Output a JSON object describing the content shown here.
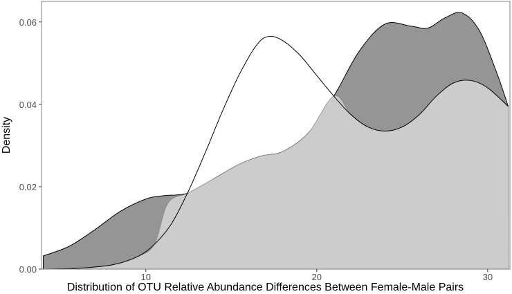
{
  "chart_data": {
    "type": "area",
    "title": "",
    "xlabel": "Distribution of OTU Relative Abundance Differences Between Female-Male Pairs",
    "ylabel": "Density",
    "xlim": [
      3.9,
      31.3
    ],
    "ylim": [
      0,
      0.065
    ],
    "x_ticks": [
      10,
      20,
      30
    ],
    "y_ticks": [
      0.0,
      0.02,
      0.04,
      0.06
    ],
    "y_tick_labels": [
      "0.00",
      "0.02",
      "0.04",
      "0.06"
    ],
    "grid": false,
    "legend": "none",
    "colors": {
      "dark_fill": "#959595",
      "light_fill": "#cccccc",
      "line": "#000000",
      "light_line": "#8c8c8c",
      "axis_text": "#4d4d4d"
    },
    "series": [
      {
        "fill": "#959595",
        "points": [
          [
            4.0,
            0.0032
          ],
          [
            5.5,
            0.0055
          ],
          [
            7.0,
            0.0095
          ],
          [
            8.5,
            0.014
          ],
          [
            10.0,
            0.017
          ],
          [
            11.0,
            0.0178
          ],
          [
            12.5,
            0.0185
          ],
          [
            14.0,
            0.022
          ],
          [
            15.5,
            0.0255
          ],
          [
            16.8,
            0.0275
          ],
          [
            18.0,
            0.0285
          ],
          [
            19.5,
            0.033
          ],
          [
            21.0,
            0.042
          ],
          [
            22.5,
            0.053
          ],
          [
            24.0,
            0.0595
          ],
          [
            25.5,
            0.059
          ],
          [
            26.5,
            0.0585
          ],
          [
            27.5,
            0.061
          ],
          [
            28.5,
            0.0622
          ],
          [
            29.5,
            0.058
          ],
          [
            30.5,
            0.048
          ],
          [
            31.2,
            0.0395
          ]
        ]
      },
      {
        "fill": "none",
        "points": [
          [
            4.0,
            0.0
          ],
          [
            6.0,
            0.0002
          ],
          [
            8.0,
            0.001
          ],
          [
            9.5,
            0.003
          ],
          [
            10.5,
            0.006
          ],
          [
            11.5,
            0.011
          ],
          [
            12.5,
            0.019
          ],
          [
            13.5,
            0.0285
          ],
          [
            14.5,
            0.0385
          ],
          [
            15.5,
            0.0475
          ],
          [
            16.5,
            0.0545
          ],
          [
            17.2,
            0.0565
          ],
          [
            18.0,
            0.0555
          ],
          [
            19.0,
            0.052
          ],
          [
            20.0,
            0.047
          ],
          [
            21.0,
            0.042
          ],
          [
            22.0,
            0.0375
          ],
          [
            23.0,
            0.0345
          ],
          [
            24.0,
            0.0335
          ],
          [
            25.0,
            0.0345
          ],
          [
            26.0,
            0.0375
          ],
          [
            27.0,
            0.042
          ],
          [
            28.0,
            0.0452
          ],
          [
            29.0,
            0.0458
          ],
          [
            30.0,
            0.044
          ],
          [
            31.2,
            0.0395
          ]
        ]
      },
      {
        "fill": "#cccccc",
        "points": [
          [
            4.0,
            0.0
          ],
          [
            6.0,
            0.0002
          ],
          [
            8.0,
            0.001
          ],
          [
            9.5,
            0.003
          ],
          [
            10.5,
            0.006
          ],
          [
            11.3,
            0.016
          ],
          [
            12.5,
            0.0185
          ],
          [
            14.0,
            0.022
          ],
          [
            15.5,
            0.0255
          ],
          [
            16.8,
            0.0275
          ],
          [
            18.0,
            0.0285
          ],
          [
            19.5,
            0.033
          ],
          [
            21.0,
            0.042
          ],
          [
            22.0,
            0.0375
          ],
          [
            23.0,
            0.0345
          ],
          [
            24.0,
            0.0335
          ],
          [
            25.0,
            0.0345
          ],
          [
            26.0,
            0.0375
          ],
          [
            27.0,
            0.042
          ],
          [
            28.0,
            0.0452
          ],
          [
            29.0,
            0.0458
          ],
          [
            30.0,
            0.044
          ],
          [
            31.2,
            0.0395
          ]
        ]
      }
    ]
  }
}
